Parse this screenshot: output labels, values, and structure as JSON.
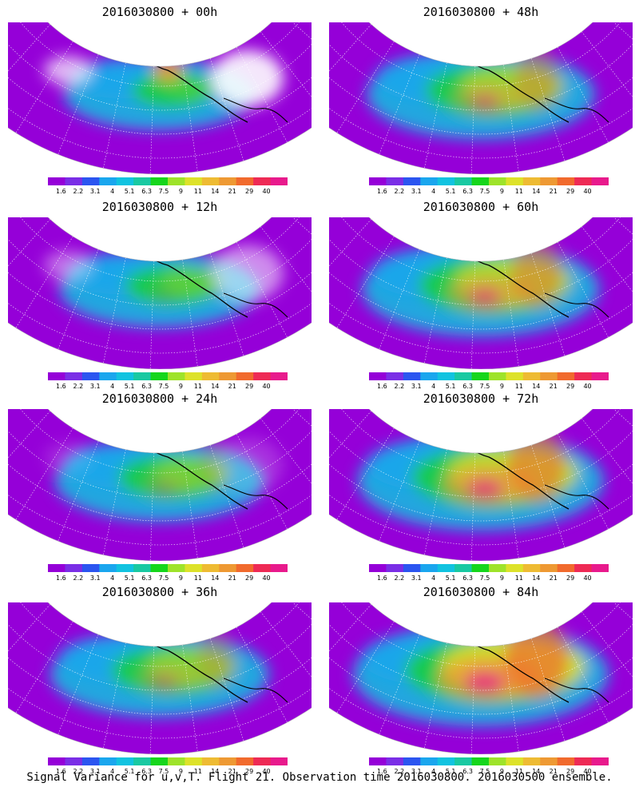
{
  "panels": [
    {
      "title": "2016030800 + 00h",
      "lead": 0
    },
    {
      "title": "2016030800 + 48h",
      "lead": 48
    },
    {
      "title": "2016030800 + 12h",
      "lead": 12
    },
    {
      "title": "2016030800 + 60h",
      "lead": 60
    },
    {
      "title": "2016030800 + 24h",
      "lead": 24
    },
    {
      "title": "2016030800 + 72h",
      "lead": 72
    },
    {
      "title": "2016030800 + 36h",
      "lead": 36
    },
    {
      "title": "2016030800 + 84h",
      "lead": 84
    }
  ],
  "colorbar": {
    "labels": [
      "1.6",
      "2.2",
      "3.1",
      "4",
      "5.1",
      "6.3",
      "7.5",
      "9",
      "11",
      "14",
      "21",
      "29",
      "40"
    ],
    "colors": [
      "#9500d8",
      "#7a2ee6",
      "#2b55f0",
      "#1aa6ee",
      "#11c3e0",
      "#19c9a2",
      "#16d61c",
      "#9ee32a",
      "#dde22a",
      "#eebb33",
      "#ee9933",
      "#f16a2d",
      "#ee2a55",
      "#e81a8c"
    ]
  },
  "footer": "Signal Variance for u,v,T. Flight 21. Observation time 2016030800. 2016030500 ensemble."
}
